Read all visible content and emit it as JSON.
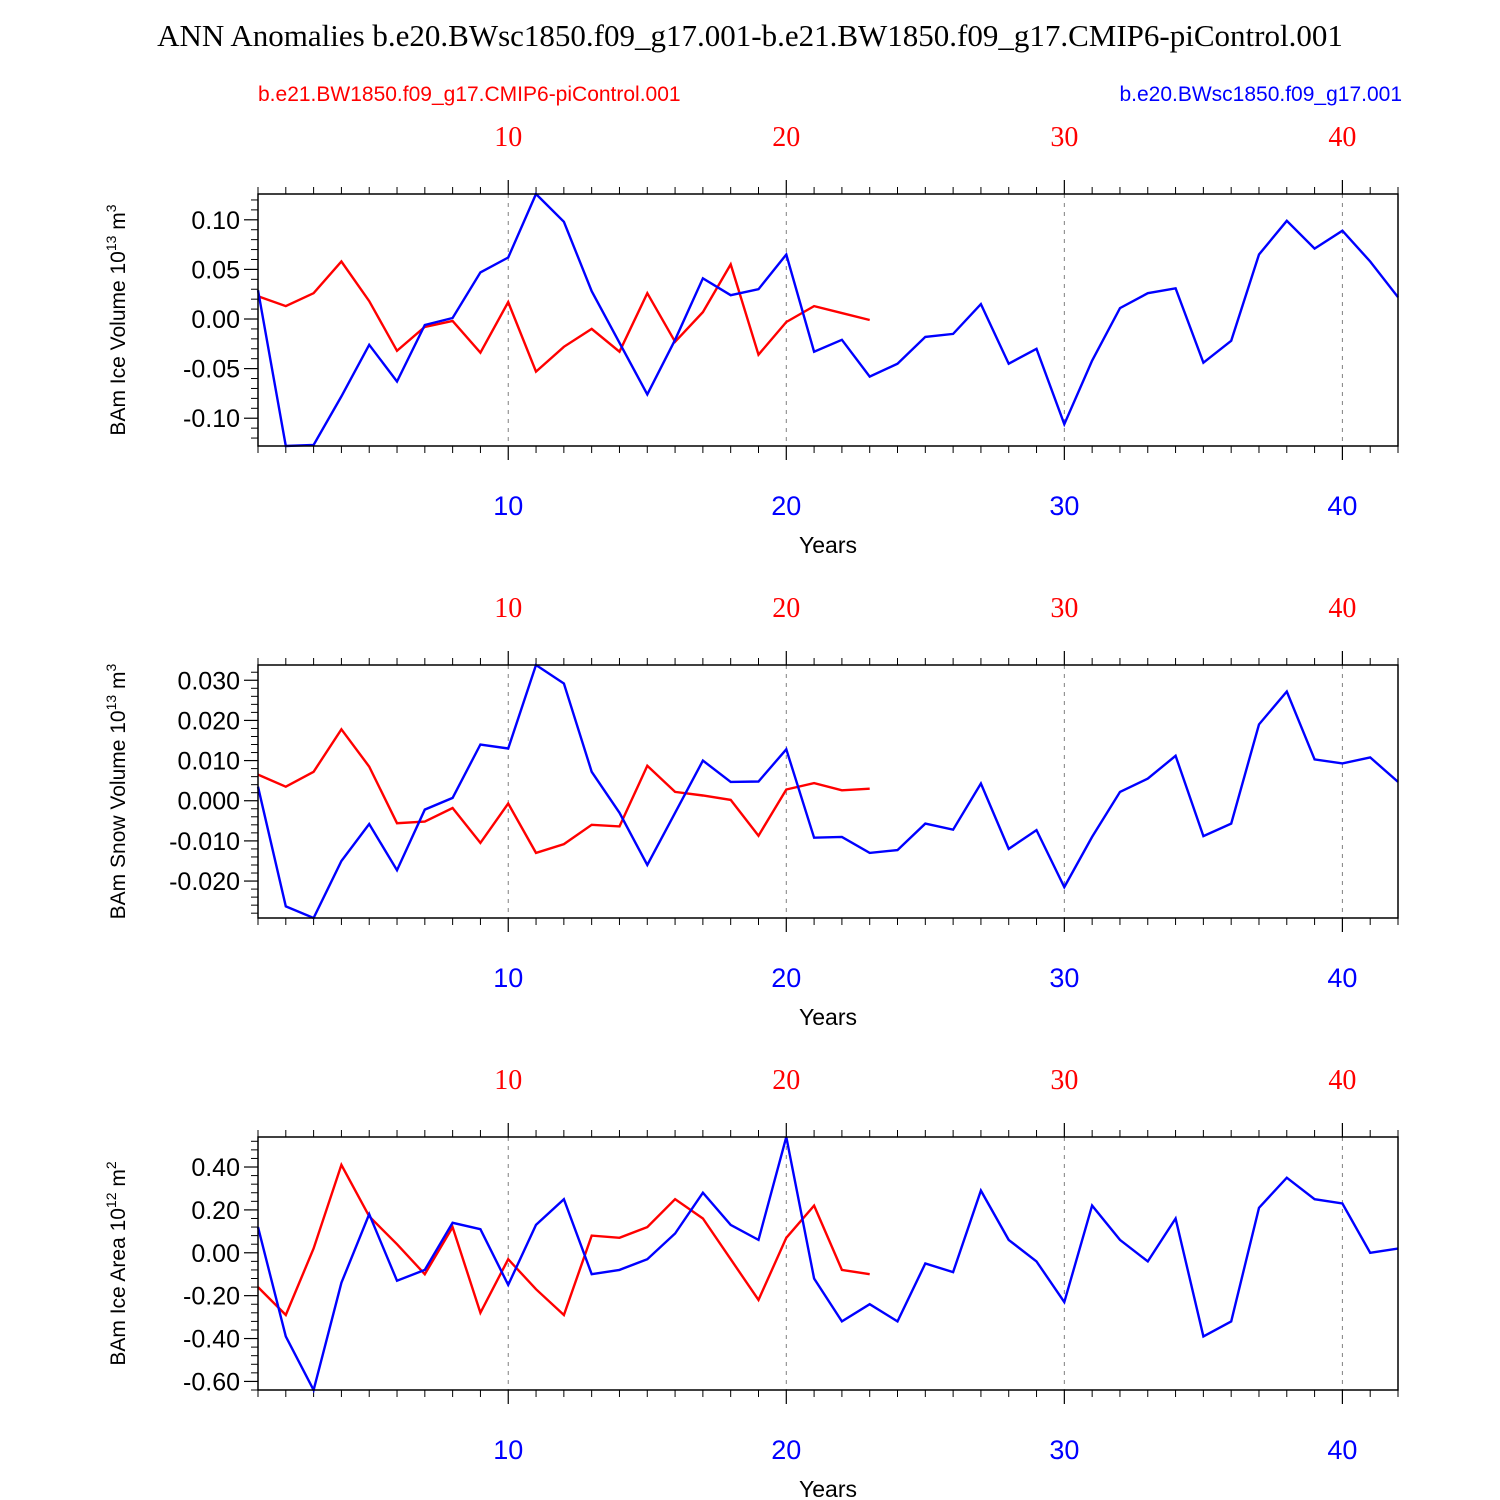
{
  "figure": {
    "title": "ANN Anomalies b.e20.BWsc1850.f09_g17.001-b.e21.BW1850.f09_g17.CMIP6-piControl.001",
    "legend_left": "b.e21.BW1850.f09_g17.CMIP6-piControl.001",
    "legend_right": "b.e20.BWsc1850.f09_g17.001"
  },
  "colors": {
    "control": "#ff0000",
    "experiment": "#0000ff",
    "axis": "#000000",
    "grid": "#808080"
  },
  "chart_data": [
    {
      "type": "line",
      "ylabel": "BAm Ice Volume 10",
      "yunit_exp": "13",
      "yunit_tail": " m",
      "yunit_pow": "3",
      "xlabel": "Years",
      "xlim": [
        1,
        42
      ],
      "ylim": [
        -0.128,
        0.126
      ],
      "yticks": [
        -0.1,
        -0.05,
        0.0,
        0.05,
        0.1
      ],
      "ytick_labels": [
        "-0.10",
        "-0.05",
        "0.00",
        "0.05",
        "0.10"
      ],
      "xticks": [
        10,
        20,
        30,
        40
      ],
      "xtick_labels": [
        "10",
        "20",
        "30",
        "40"
      ],
      "series": [
        {
          "name": "b.e21.BW1850.f09_g17.CMIP6-piControl.001",
          "color": "#ff0000",
          "x": [
            1,
            2,
            3,
            4,
            5,
            6,
            7,
            8,
            9,
            10,
            11,
            12,
            13,
            14,
            15,
            16,
            17,
            18,
            19,
            20,
            21,
            22,
            23
          ],
          "values": [
            0.023,
            0.013,
            0.026,
            0.058,
            0.018,
            -0.032,
            -0.008,
            -0.002,
            -0.034,
            0.017,
            -0.053,
            -0.028,
            -0.01,
            -0.033,
            0.026,
            -0.023,
            0.007,
            0.055,
            -0.036,
            -0.003,
            0.013,
            0.006,
            -0.001
          ]
        },
        {
          "name": "b.e20.BWsc1850.f09_g17.001",
          "color": "#0000ff",
          "x": [
            1,
            2,
            3,
            4,
            5,
            6,
            7,
            8,
            9,
            10,
            11,
            12,
            13,
            14,
            15,
            16,
            17,
            18,
            19,
            20,
            21,
            22,
            23,
            24,
            25,
            26,
            27,
            28,
            29,
            30,
            31,
            32,
            33,
            34,
            35,
            36,
            37,
            38,
            39,
            40,
            41,
            42
          ],
          "values": [
            0.029,
            -0.128,
            -0.127,
            -0.078,
            -0.026,
            -0.063,
            -0.006,
            0.001,
            0.047,
            0.062,
            0.126,
            0.098,
            0.028,
            -0.024,
            -0.076,
            -0.021,
            0.041,
            0.024,
            0.03,
            0.065,
            -0.033,
            -0.021,
            -0.058,
            -0.045,
            -0.018,
            -0.015,
            0.015,
            -0.045,
            -0.03,
            -0.106,
            -0.042,
            0.011,
            0.026,
            0.031,
            -0.044,
            -0.022,
            0.065,
            0.099,
            0.071,
            0.089,
            0.058,
            0.022
          ]
        }
      ]
    },
    {
      "type": "line",
      "ylabel": "BAm Snow Volume 10",
      "yunit_exp": "13",
      "yunit_tail": " m",
      "yunit_pow": "3",
      "xlabel": "Years",
      "xlim": [
        1,
        42
      ],
      "ylim": [
        -0.0292,
        0.0338
      ],
      "yticks": [
        -0.02,
        -0.01,
        0.0,
        0.01,
        0.02,
        0.03
      ],
      "ytick_labels": [
        "-0.020",
        "-0.010",
        "0.000",
        "0.010",
        "0.020",
        "0.030"
      ],
      "xticks": [
        10,
        20,
        30,
        40
      ],
      "xtick_labels": [
        "10",
        "20",
        "30",
        "40"
      ],
      "series": [
        {
          "name": "b.e21.BW1850.f09_g17.CMIP6-piControl.001",
          "color": "#ff0000",
          "x": [
            1,
            2,
            3,
            4,
            5,
            6,
            7,
            8,
            9,
            10,
            11,
            12,
            13,
            14,
            15,
            16,
            17,
            18,
            19,
            20,
            21,
            22,
            23
          ],
          "values": [
            0.0065,
            0.0035,
            0.0072,
            0.0178,
            0.0085,
            -0.0056,
            -0.0052,
            -0.0018,
            -0.0105,
            -0.0007,
            -0.013,
            -0.0108,
            -0.006,
            -0.0064,
            0.0087,
            0.0022,
            0.0013,
            0.0002,
            -0.0087,
            0.0028,
            0.0044,
            0.0026,
            0.003
          ]
        },
        {
          "name": "b.e20.BWsc1850.f09_g17.001",
          "color": "#0000ff",
          "x": [
            1,
            2,
            3,
            4,
            5,
            6,
            7,
            8,
            9,
            10,
            11,
            12,
            13,
            14,
            15,
            16,
            17,
            18,
            19,
            20,
            21,
            22,
            23,
            24,
            25,
            26,
            27,
            28,
            29,
            30,
            31,
            32,
            33,
            34,
            35,
            36,
            37,
            38,
            39,
            40,
            41,
            42
          ],
          "values": [
            0.0035,
            -0.0263,
            -0.0292,
            -0.015,
            -0.0058,
            -0.0173,
            -0.0022,
            0.0007,
            0.014,
            0.013,
            0.0338,
            0.0292,
            0.0072,
            -0.003,
            -0.016,
            -0.003,
            0.01,
            0.0047,
            0.0048,
            0.0128,
            -0.0092,
            -0.009,
            -0.013,
            -0.0123,
            -0.0057,
            -0.0072,
            0.0043,
            -0.012,
            -0.0073,
            -0.0215,
            -0.009,
            0.0022,
            0.0055,
            0.0112,
            -0.0088,
            -0.0057,
            0.019,
            0.0272,
            0.0103,
            0.0093,
            0.0108,
            0.0047
          ]
        }
      ]
    },
    {
      "type": "line",
      "ylabel": "BAm Ice Area 10",
      "yunit_exp": "12",
      "yunit_tail": " m",
      "yunit_pow": "2",
      "xlabel": "Years",
      "xlim": [
        1,
        42
      ],
      "ylim": [
        -0.64,
        0.54
      ],
      "yticks": [
        -0.6,
        -0.4,
        -0.2,
        0.0,
        0.2,
        0.4
      ],
      "ytick_labels": [
        "-0.60",
        "-0.40",
        "-0.20",
        "0.00",
        "0.20",
        "0.40"
      ],
      "xticks": [
        10,
        20,
        30,
        40
      ],
      "xtick_labels": [
        "10",
        "20",
        "30",
        "40"
      ],
      "series": [
        {
          "name": "b.e21.BW1850.f09_g17.CMIP6-piControl.001",
          "color": "#ff0000",
          "x": [
            1,
            2,
            3,
            4,
            5,
            6,
            7,
            8,
            9,
            10,
            11,
            12,
            13,
            14,
            15,
            16,
            17,
            18,
            19,
            20,
            21,
            22,
            23
          ],
          "values": [
            -0.16,
            -0.29,
            0.02,
            0.41,
            0.17,
            0.04,
            -0.1,
            0.12,
            -0.28,
            -0.03,
            -0.17,
            -0.29,
            0.08,
            0.07,
            0.12,
            0.25,
            0.16,
            -0.03,
            -0.22,
            0.07,
            0.22,
            -0.08,
            -0.1
          ]
        },
        {
          "name": "b.e20.BWsc1850.f09_g17.001",
          "color": "#0000ff",
          "x": [
            1,
            2,
            3,
            4,
            5,
            6,
            7,
            8,
            9,
            10,
            11,
            12,
            13,
            14,
            15,
            16,
            17,
            18,
            19,
            20,
            21,
            22,
            23,
            24,
            25,
            26,
            27,
            28,
            29,
            30,
            31,
            32,
            33,
            34,
            35,
            36,
            37,
            38,
            39,
            40,
            41,
            42
          ],
          "values": [
            0.12,
            -0.39,
            -0.64,
            -0.14,
            0.18,
            -0.13,
            -0.08,
            0.14,
            0.11,
            -0.15,
            0.13,
            0.25,
            -0.1,
            -0.08,
            -0.03,
            0.09,
            0.28,
            0.13,
            0.06,
            0.54,
            -0.12,
            -0.32,
            -0.24,
            -0.32,
            -0.05,
            -0.09,
            0.29,
            0.06,
            -0.04,
            -0.23,
            0.22,
            0.06,
            -0.04,
            0.16,
            -0.39,
            -0.32,
            0.21,
            0.35,
            0.25,
            0.23,
            0.0,
            0.02
          ]
        }
      ]
    }
  ]
}
